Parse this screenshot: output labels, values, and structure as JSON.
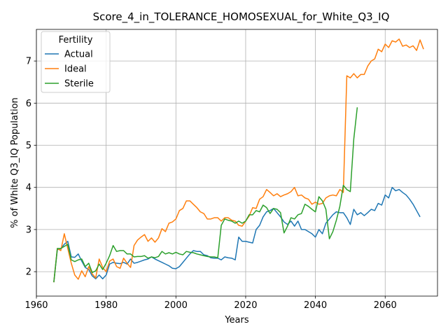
{
  "chart_data": {
    "type": "line",
    "title": "Score_4_in_TOLERANCE_HOMOSEXUAL_for_White_Q3_IQ",
    "xlabel": "Years",
    "ylabel": "% of White Q3_IQ Population",
    "xlim": [
      1960,
      2075
    ],
    "ylim": [
      1.42,
      7.75
    ],
    "xticks": [
      1960,
      1980,
      2000,
      2020,
      2040,
      2060
    ],
    "yticks": [
      2,
      3,
      4,
      5,
      6,
      7
    ],
    "grid": true,
    "legend": {
      "title": "Fertility",
      "placement": "top-left"
    },
    "series": [
      {
        "name": "Actual",
        "color": "#1f77b4",
        "points": [
          [
            1965,
            1.75
          ],
          [
            1966,
            2.52
          ],
          [
            1967,
            2.55
          ],
          [
            1968,
            2.65
          ],
          [
            1969,
            2.72
          ],
          [
            1970,
            2.35
          ],
          [
            1971,
            2.34
          ],
          [
            1972,
            2.42
          ],
          [
            1973,
            2.25
          ],
          [
            1974,
            2.1
          ],
          [
            1975,
            2.05
          ],
          [
            1976,
            1.9
          ],
          [
            1977,
            1.83
          ],
          [
            1978,
            1.92
          ],
          [
            1979,
            1.83
          ],
          [
            1980,
            1.92
          ],
          [
            1981,
            2.18
          ],
          [
            1982,
            2.22
          ],
          [
            1983,
            2.2
          ],
          [
            1984,
            2.19
          ],
          [
            1985,
            2.22
          ],
          [
            1986,
            2.18
          ],
          [
            1987,
            2.3
          ],
          [
            1988,
            2.2
          ],
          [
            1989,
            2.22
          ],
          [
            1990,
            2.25
          ],
          [
            1991,
            2.28
          ],
          [
            1992,
            2.3
          ],
          [
            1993,
            2.35
          ],
          [
            1994,
            2.3
          ],
          [
            1995,
            2.26
          ],
          [
            1996,
            2.22
          ],
          [
            1997,
            2.18
          ],
          [
            1998,
            2.14
          ],
          [
            1999,
            2.08
          ],
          [
            2000,
            2.07
          ],
          [
            2001,
            2.12
          ],
          [
            2002,
            2.22
          ],
          [
            2003,
            2.32
          ],
          [
            2004,
            2.42
          ],
          [
            2005,
            2.5
          ],
          [
            2006,
            2.48
          ],
          [
            2007,
            2.48
          ],
          [
            2008,
            2.4
          ],
          [
            2009,
            2.38
          ],
          [
            2010,
            2.33
          ],
          [
            2011,
            2.32
          ],
          [
            2012,
            2.32
          ],
          [
            2013,
            2.28
          ],
          [
            2014,
            2.35
          ],
          [
            2015,
            2.33
          ],
          [
            2016,
            2.32
          ],
          [
            2017,
            2.28
          ],
          [
            2018,
            2.82
          ],
          [
            2019,
            2.72
          ],
          [
            2020,
            2.72
          ],
          [
            2021,
            2.7
          ],
          [
            2022,
            2.68
          ],
          [
            2023,
            3.0
          ],
          [
            2024,
            3.1
          ],
          [
            2025,
            3.3
          ],
          [
            2026,
            3.42
          ],
          [
            2027,
            3.45
          ],
          [
            2028,
            3.5
          ],
          [
            2029,
            3.4
          ],
          [
            2030,
            3.3
          ],
          [
            2031,
            3.18
          ],
          [
            2032,
            3.12
          ],
          [
            2033,
            3.2
          ],
          [
            2034,
            3.08
          ],
          [
            2035,
            3.2
          ],
          [
            2036,
            3.0
          ],
          [
            2037,
            3.0
          ],
          [
            2038,
            2.95
          ],
          [
            2039,
            2.9
          ],
          [
            2040,
            2.82
          ],
          [
            2041,
            3.0
          ],
          [
            2042,
            2.9
          ],
          [
            2043,
            3.15
          ],
          [
            2044,
            3.25
          ],
          [
            2045,
            3.35
          ],
          [
            2046,
            3.42
          ],
          [
            2047,
            3.4
          ],
          [
            2048,
            3.4
          ],
          [
            2049,
            3.28
          ],
          [
            2050,
            3.12
          ],
          [
            2051,
            3.48
          ],
          [
            2052,
            3.35
          ],
          [
            2053,
            3.4
          ],
          [
            2054,
            3.33
          ],
          [
            2055,
            3.4
          ],
          [
            2056,
            3.48
          ],
          [
            2057,
            3.45
          ],
          [
            2058,
            3.62
          ],
          [
            2059,
            3.58
          ],
          [
            2060,
            3.82
          ],
          [
            2061,
            3.75
          ],
          [
            2062,
            4.0
          ],
          [
            2063,
            3.92
          ],
          [
            2064,
            3.95
          ],
          [
            2065,
            3.88
          ],
          [
            2066,
            3.82
          ],
          [
            2067,
            3.72
          ],
          [
            2068,
            3.6
          ],
          [
            2069,
            3.45
          ],
          [
            2070,
            3.3
          ]
        ]
      },
      {
        "name": "Ideal",
        "color": "#ff7f0e",
        "points": [
          [
            1965,
            1.75
          ],
          [
            1966,
            2.55
          ],
          [
            1967,
            2.5
          ],
          [
            1968,
            2.9
          ],
          [
            1969,
            2.55
          ],
          [
            1970,
            2.2
          ],
          [
            1971,
            1.92
          ],
          [
            1972,
            1.82
          ],
          [
            1973,
            2.02
          ],
          [
            1974,
            1.88
          ],
          [
            1975,
            2.12
          ],
          [
            1976,
            1.95
          ],
          [
            1977,
            1.85
          ],
          [
            1978,
            2.3
          ],
          [
            1979,
            2.1
          ],
          [
            1980,
            2.0
          ],
          [
            1981,
            2.25
          ],
          [
            1982,
            2.3
          ],
          [
            1983,
            2.12
          ],
          [
            1984,
            2.08
          ],
          [
            1985,
            2.32
          ],
          [
            1986,
            2.2
          ],
          [
            1987,
            2.1
          ],
          [
            1988,
            2.62
          ],
          [
            1989,
            2.75
          ],
          [
            1990,
            2.82
          ],
          [
            1991,
            2.88
          ],
          [
            1992,
            2.72
          ],
          [
            1993,
            2.8
          ],
          [
            1994,
            2.7
          ],
          [
            1995,
            2.8
          ],
          [
            1996,
            3.02
          ],
          [
            1997,
            2.95
          ],
          [
            1998,
            3.15
          ],
          [
            1999,
            3.18
          ],
          [
            2000,
            3.25
          ],
          [
            2001,
            3.45
          ],
          [
            2002,
            3.5
          ],
          [
            2003,
            3.68
          ],
          [
            2004,
            3.68
          ],
          [
            2005,
            3.6
          ],
          [
            2006,
            3.52
          ],
          [
            2007,
            3.42
          ],
          [
            2008,
            3.38
          ],
          [
            2009,
            3.25
          ],
          [
            2010,
            3.25
          ],
          [
            2011,
            3.28
          ],
          [
            2012,
            3.28
          ],
          [
            2013,
            3.2
          ],
          [
            2014,
            3.28
          ],
          [
            2015,
            3.28
          ],
          [
            2016,
            3.22
          ],
          [
            2017,
            3.2
          ],
          [
            2018,
            3.1
          ],
          [
            2019,
            3.08
          ],
          [
            2020,
            3.2
          ],
          [
            2021,
            3.32
          ],
          [
            2022,
            3.52
          ],
          [
            2023,
            3.5
          ],
          [
            2024,
            3.72
          ],
          [
            2025,
            3.78
          ],
          [
            2026,
            3.95
          ],
          [
            2027,
            3.88
          ],
          [
            2028,
            3.8
          ],
          [
            2029,
            3.85
          ],
          [
            2030,
            3.78
          ],
          [
            2031,
            3.82
          ],
          [
            2032,
            3.85
          ],
          [
            2033,
            3.9
          ],
          [
            2034,
            4.0
          ],
          [
            2035,
            3.8
          ],
          [
            2036,
            3.82
          ],
          [
            2037,
            3.75
          ],
          [
            2038,
            3.72
          ],
          [
            2039,
            3.6
          ],
          [
            2040,
            3.65
          ],
          [
            2041,
            3.6
          ],
          [
            2042,
            3.62
          ],
          [
            2043,
            3.75
          ],
          [
            2044,
            3.8
          ],
          [
            2045,
            3.82
          ],
          [
            2046,
            3.8
          ],
          [
            2047,
            3.95
          ],
          [
            2048,
            3.88
          ],
          [
            2049,
            6.65
          ],
          [
            2050,
            6.6
          ],
          [
            2051,
            6.7
          ],
          [
            2052,
            6.6
          ],
          [
            2053,
            6.68
          ],
          [
            2054,
            6.68
          ],
          [
            2055,
            6.88
          ],
          [
            2056,
            7.0
          ],
          [
            2057,
            7.05
          ],
          [
            2058,
            7.28
          ],
          [
            2059,
            7.22
          ],
          [
            2060,
            7.4
          ],
          [
            2061,
            7.32
          ],
          [
            2062,
            7.48
          ],
          [
            2063,
            7.45
          ],
          [
            2064,
            7.52
          ],
          [
            2065,
            7.35
          ],
          [
            2066,
            7.38
          ],
          [
            2067,
            7.32
          ],
          [
            2068,
            7.36
          ],
          [
            2069,
            7.25
          ],
          [
            2070,
            7.5
          ],
          [
            2071,
            7.28
          ]
        ]
      },
      {
        "name": "Sterile",
        "color": "#2ca02c",
        "points": [
          [
            1965,
            1.75
          ],
          [
            1966,
            2.55
          ],
          [
            1967,
            2.55
          ],
          [
            1968,
            2.6
          ],
          [
            1969,
            2.65
          ],
          [
            1970,
            2.28
          ],
          [
            1971,
            2.24
          ],
          [
            1972,
            2.28
          ],
          [
            1973,
            2.3
          ],
          [
            1974,
            2.12
          ],
          [
            1975,
            2.2
          ],
          [
            1976,
            1.98
          ],
          [
            1977,
            2.02
          ],
          [
            1978,
            2.18
          ],
          [
            1979,
            2.05
          ],
          [
            1980,
            2.2
          ],
          [
            1981,
            2.38
          ],
          [
            1982,
            2.62
          ],
          [
            1983,
            2.48
          ],
          [
            1984,
            2.5
          ],
          [
            1985,
            2.5
          ],
          [
            1986,
            2.42
          ],
          [
            1987,
            2.42
          ],
          [
            1988,
            2.35
          ],
          [
            1989,
            2.36
          ],
          [
            1990,
            2.36
          ],
          [
            1991,
            2.38
          ],
          [
            1992,
            2.32
          ],
          [
            1993,
            2.35
          ],
          [
            1994,
            2.33
          ],
          [
            1995,
            2.36
          ],
          [
            1996,
            2.48
          ],
          [
            1997,
            2.42
          ],
          [
            1998,
            2.45
          ],
          [
            1999,
            2.42
          ],
          [
            2000,
            2.46
          ],
          [
            2001,
            2.42
          ],
          [
            2002,
            2.4
          ],
          [
            2003,
            2.48
          ],
          [
            2004,
            2.46
          ],
          [
            2005,
            2.45
          ],
          [
            2006,
            2.42
          ],
          [
            2007,
            2.4
          ],
          [
            2008,
            2.38
          ],
          [
            2009,
            2.36
          ],
          [
            2010,
            2.35
          ],
          [
            2011,
            2.35
          ],
          [
            2012,
            2.33
          ],
          [
            2013,
            3.1
          ],
          [
            2014,
            3.25
          ],
          [
            2015,
            3.22
          ],
          [
            2016,
            3.2
          ],
          [
            2017,
            3.15
          ],
          [
            2018,
            3.2
          ],
          [
            2019,
            3.15
          ],
          [
            2020,
            3.2
          ],
          [
            2021,
            3.35
          ],
          [
            2022,
            3.35
          ],
          [
            2023,
            3.45
          ],
          [
            2024,
            3.42
          ],
          [
            2025,
            3.58
          ],
          [
            2026,
            3.52
          ],
          [
            2027,
            3.38
          ],
          [
            2028,
            3.5
          ],
          [
            2029,
            3.48
          ],
          [
            2030,
            3.4
          ],
          [
            2031,
            2.92
          ],
          [
            2032,
            3.08
          ],
          [
            2033,
            3.28
          ],
          [
            2034,
            3.25
          ],
          [
            2035,
            3.35
          ],
          [
            2036,
            3.38
          ],
          [
            2037,
            3.6
          ],
          [
            2038,
            3.55
          ],
          [
            2039,
            3.48
          ],
          [
            2040,
            3.42
          ],
          [
            2041,
            3.78
          ],
          [
            2042,
            3.68
          ],
          [
            2043,
            3.48
          ],
          [
            2044,
            2.78
          ],
          [
            2045,
            2.95
          ],
          [
            2046,
            3.22
          ],
          [
            2047,
            3.55
          ],
          [
            2048,
            4.05
          ],
          [
            2049,
            3.95
          ],
          [
            2050,
            3.9
          ],
          [
            2051,
            5.15
          ],
          [
            2052,
            5.9
          ]
        ]
      }
    ]
  }
}
